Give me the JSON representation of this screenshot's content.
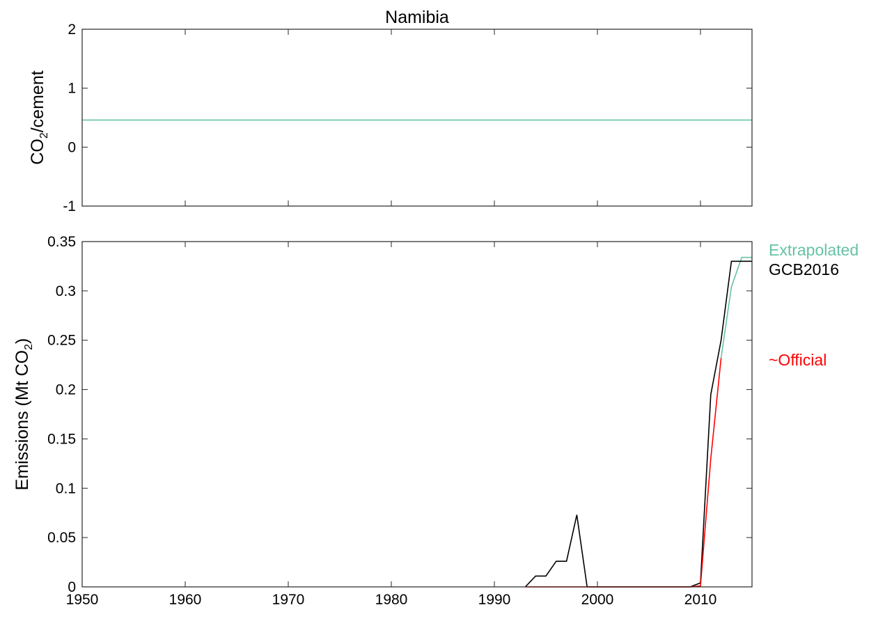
{
  "chart_data": [
    {
      "type": "line",
      "title": "Namibia",
      "ylabel": "CO2/cement",
      "ylabel_main": "CO",
      "ylabel_sub": "2",
      "ylabel_rest": "/cement",
      "xlim": [
        1950,
        2015
      ],
      "ylim": [
        -1,
        2
      ],
      "yticks": [
        -1,
        0,
        1,
        2
      ],
      "ytick_labels": [
        "-1",
        "0",
        "1",
        "2"
      ],
      "grid": false,
      "series": [
        {
          "name": "",
          "color": "#66c2a5",
          "x": [
            1950,
            2015
          ],
          "y": [
            0.46,
            0.46
          ]
        }
      ]
    },
    {
      "type": "line",
      "ylabel": "Emissions (Mt CO2)",
      "ylabel_main": "Emissions (Mt CO",
      "ylabel_sub": "2",
      "ylabel_rest": ")",
      "xlim": [
        1950,
        2015
      ],
      "ylim": [
        0,
        0.35
      ],
      "xticks": [
        1950,
        1960,
        1970,
        1980,
        1990,
        2000,
        2010
      ],
      "xtick_labels": [
        "1950",
        "1960",
        "1970",
        "1980",
        "1990",
        "2000",
        "2010"
      ],
      "yticks": [
        0,
        0.05,
        0.1,
        0.15,
        0.2,
        0.25,
        0.3,
        0.35
      ],
      "ytick_labels": [
        "0",
        "0.05",
        "0.1",
        "0.15",
        "0.2",
        "0.25",
        "0.3",
        "0.35"
      ],
      "grid": false,
      "legend": "right-outside",
      "series": [
        {
          "name": "Extrapolated",
          "color": "#66c2a5",
          "x": [
            2012,
            2013,
            2014,
            2015
          ],
          "y": [
            0.232,
            0.304,
            0.334,
            0.334
          ]
        },
        {
          "name": "GCB2016",
          "color": "#000000",
          "x": [
            1993,
            1994,
            1995,
            1996,
            1997,
            1998,
            1999,
            2000,
            2009,
            2010,
            2011,
            2012,
            2013,
            2014,
            2015
          ],
          "y": [
            0,
            0.011,
            0.011,
            0.026,
            0.026,
            0.073,
            0,
            0,
            0,
            0.004,
            0.195,
            0.25,
            0.33,
            0.33,
            0.33
          ]
        },
        {
          "name": "~Official",
          "color": "#ff0000",
          "x": [
            1993,
            1999,
            2009,
            2010,
            2011,
            2012
          ],
          "y": [
            0,
            0,
            0,
            0.001,
            0.13,
            0.232
          ]
        }
      ]
    }
  ]
}
